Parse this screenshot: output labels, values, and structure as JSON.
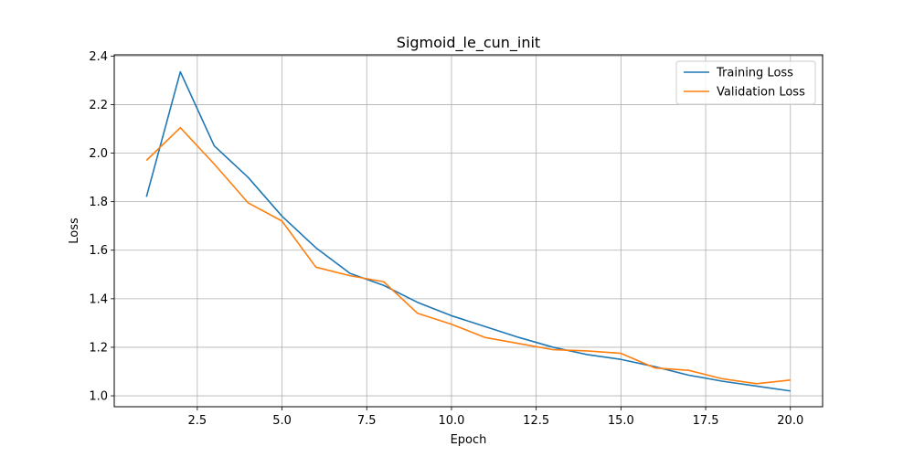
{
  "chart_data": {
    "type": "line",
    "title": "Sigmoid_le_cun_init",
    "xlabel": "Epoch",
    "ylabel": "Loss",
    "xlim": [
      0.05,
      20.95
    ],
    "ylim": [
      0.955,
      2.405
    ],
    "xticks": [
      2.5,
      5.0,
      7.5,
      10.0,
      12.5,
      15.0,
      17.5,
      20.0
    ],
    "xtick_labels": [
      "2.5",
      "5.0",
      "7.5",
      "10.0",
      "12.5",
      "15.0",
      "17.5",
      "20.0"
    ],
    "yticks": [
      1.0,
      1.2,
      1.4,
      1.6,
      1.8,
      2.0,
      2.2,
      2.4
    ],
    "ytick_labels": [
      "1.0",
      "1.2",
      "1.4",
      "1.6",
      "1.8",
      "2.0",
      "2.2",
      "2.4"
    ],
    "grid": true,
    "legend_position": "top-right",
    "x": [
      1,
      2,
      3,
      4,
      5,
      6,
      7,
      8,
      9,
      10,
      11,
      12,
      13,
      14,
      15,
      16,
      17,
      18,
      19,
      20
    ],
    "series": [
      {
        "name": "Training Loss",
        "color": "#1f77b4",
        "values": [
          1.82,
          2.335,
          2.03,
          1.9,
          1.74,
          1.61,
          1.505,
          1.455,
          1.385,
          1.33,
          1.285,
          1.24,
          1.2,
          1.17,
          1.15,
          1.12,
          1.085,
          1.06,
          1.04,
          1.02
        ]
      },
      {
        "name": "Validation Loss",
        "color": "#ff7f0e",
        "values": [
          1.97,
          2.105,
          1.955,
          1.795,
          1.72,
          1.53,
          1.495,
          1.47,
          1.34,
          1.295,
          1.24,
          1.215,
          1.19,
          1.185,
          1.175,
          1.115,
          1.105,
          1.07,
          1.05,
          1.065
        ]
      }
    ]
  }
}
